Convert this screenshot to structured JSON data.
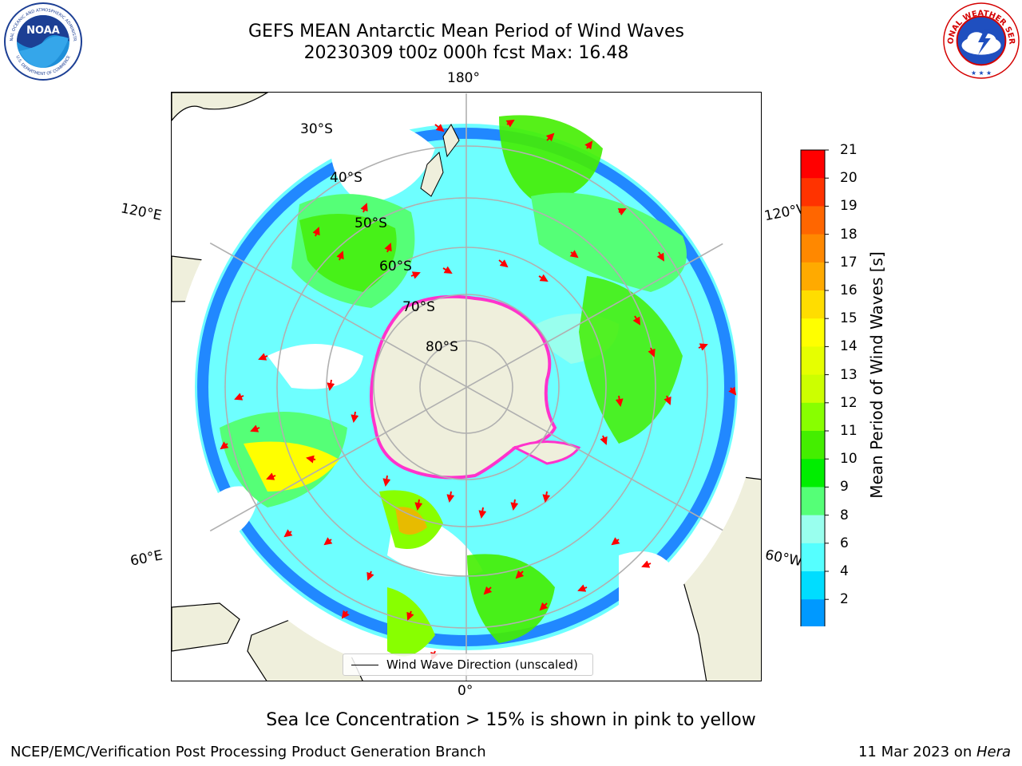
{
  "title": {
    "line1": "GEFS MEAN Antarctic Mean Period of Wind Waves",
    "line2": "20230309 t00z 000h fcst   Max: 16.48"
  },
  "logos": {
    "noaa": {
      "text": "NOAA",
      "ring_top": "NATIONAL OCEANIC AND ATMOSPHERIC ADMINISTRATION",
      "ring_bottom": "U.S. DEPARTMENT OF COMMERCE"
    },
    "nws": {
      "ring": "NATIONAL WEATHER SERVICE"
    }
  },
  "map": {
    "projection": "south-polar-stereographic",
    "lon_labels": {
      "top": "180°",
      "bottom": "0°",
      "left_upper": "120°E",
      "left_lower": "60°E",
      "right_upper": "120°W",
      "right_lower": "60°W"
    },
    "lat_labels": [
      "30°S",
      "40°S",
      "50°S",
      "60°S",
      "70°S",
      "80°S"
    ],
    "legend_label": "Wind Wave Direction (unscaled)",
    "colors": {
      "land": "#efefdc",
      "ice_edge": "#ff33cc",
      "arrow": "#ff0000",
      "grid": "#b0b0b0"
    }
  },
  "colorbar": {
    "label": "Mean Period of Wind Waves [s]",
    "ticks": [
      "21",
      "20",
      "19",
      "18",
      "17",
      "16",
      "15",
      "14",
      "13",
      "12",
      "11",
      "10",
      "9",
      "8",
      "6",
      "4",
      "2"
    ],
    "colors": [
      "#ff0000",
      "#ff3300",
      "#ff6600",
      "#ff8800",
      "#ffaa00",
      "#ffdd00",
      "#ffff00",
      "#e6ff00",
      "#ccff00",
      "#88ff00",
      "#44ee00",
      "#00ee00",
      "#55ff77",
      "#99ffee",
      "#55ffff",
      "#00ddff",
      "#0099ff",
      "#0055ff"
    ]
  },
  "chart_data": {
    "type": "heatmap",
    "title": "GEFS MEAN Antarctic Mean Period of Wind Waves",
    "subtitle": "20230309 t00z 000h fcst   Max: 16.48",
    "variable": "Mean Period of Wind Waves [s]",
    "max": 16.48,
    "colorbar_range": [
      2,
      21
    ],
    "colorbar_ticks": [
      2,
      4,
      6,
      8,
      9,
      10,
      11,
      12,
      13,
      14,
      15,
      16,
      17,
      18,
      19,
      20,
      21
    ],
    "legend": "Wind Wave Direction (unscaled)"
  },
  "notes": {
    "ice": "Sea Ice Concentration > 15% is shown in pink to yellow"
  },
  "footer": {
    "left": "NCEP/EMC/Verification Post Processing Product Generation Branch",
    "date": "11 Mar 2023 on ",
    "host": "Hera"
  }
}
